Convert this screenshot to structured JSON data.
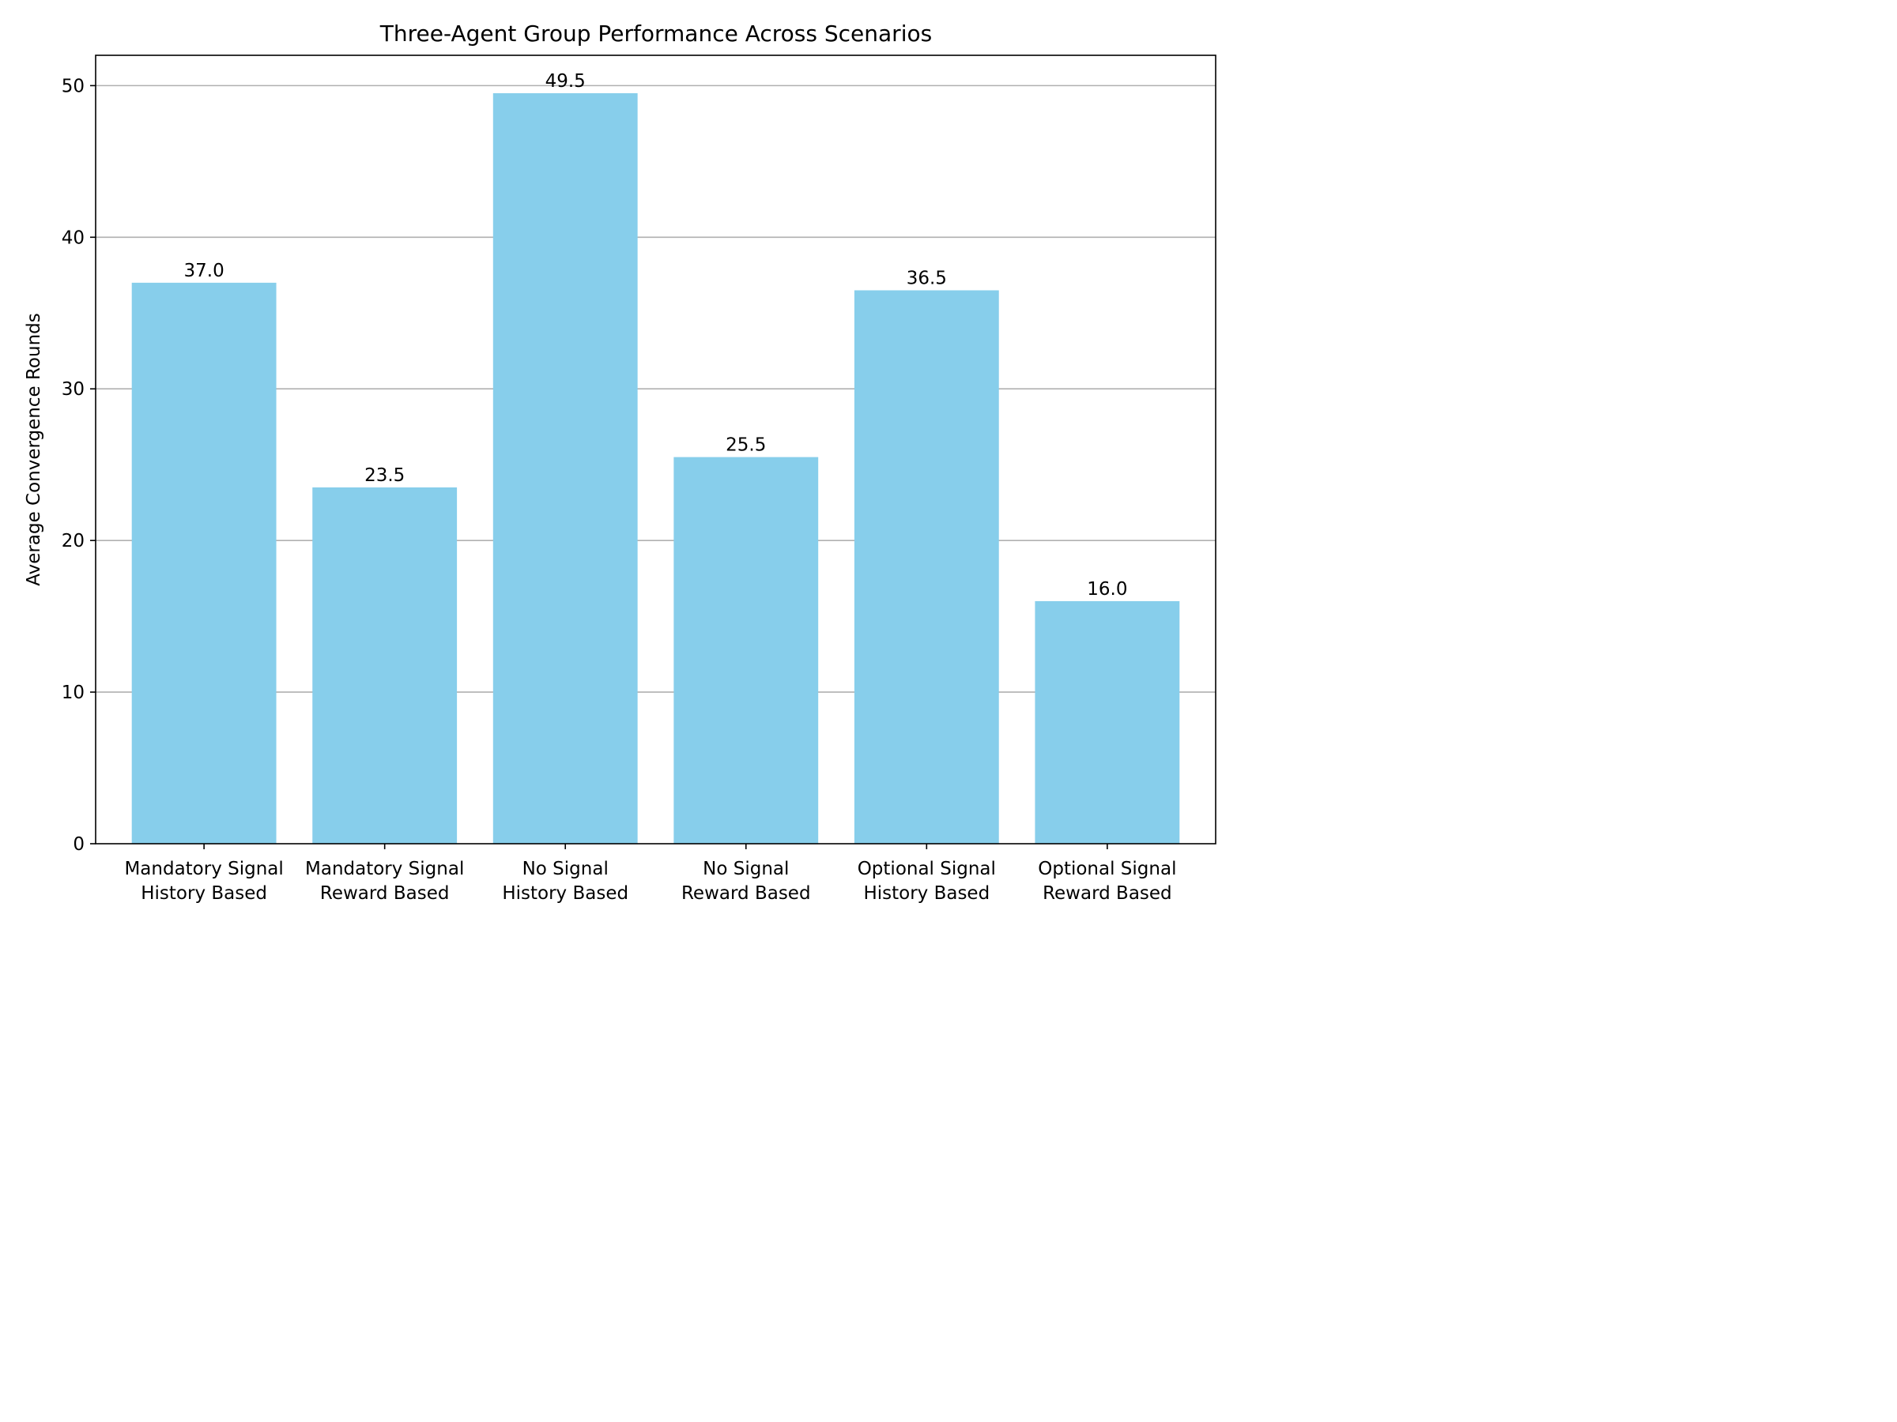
{
  "chart_data": {
    "type": "bar",
    "title": "Three-Agent Group Performance Across Scenarios",
    "xlabel": "",
    "ylabel": "Average Convergence Rounds",
    "categories": [
      [
        "Mandatory Signal",
        "History Based"
      ],
      [
        "Mandatory Signal",
        "Reward Based"
      ],
      [
        "No Signal",
        "History Based"
      ],
      [
        "No Signal",
        "Reward Based"
      ],
      [
        "Optional Signal",
        "History Based"
      ],
      [
        "Optional Signal",
        "Reward Based"
      ]
    ],
    "values": [
      37.0,
      23.5,
      49.5,
      25.5,
      36.5,
      16.0
    ],
    "data_labels": [
      "37.0",
      "23.5",
      "49.5",
      "25.5",
      "36.5",
      "16.0"
    ],
    "ylim": [
      0,
      52
    ],
    "yticks": [
      0,
      10,
      20,
      30,
      40,
      50
    ],
    "grid": "y",
    "bar_color": "#87CEEB",
    "grid_color": "#b0b0b0"
  }
}
